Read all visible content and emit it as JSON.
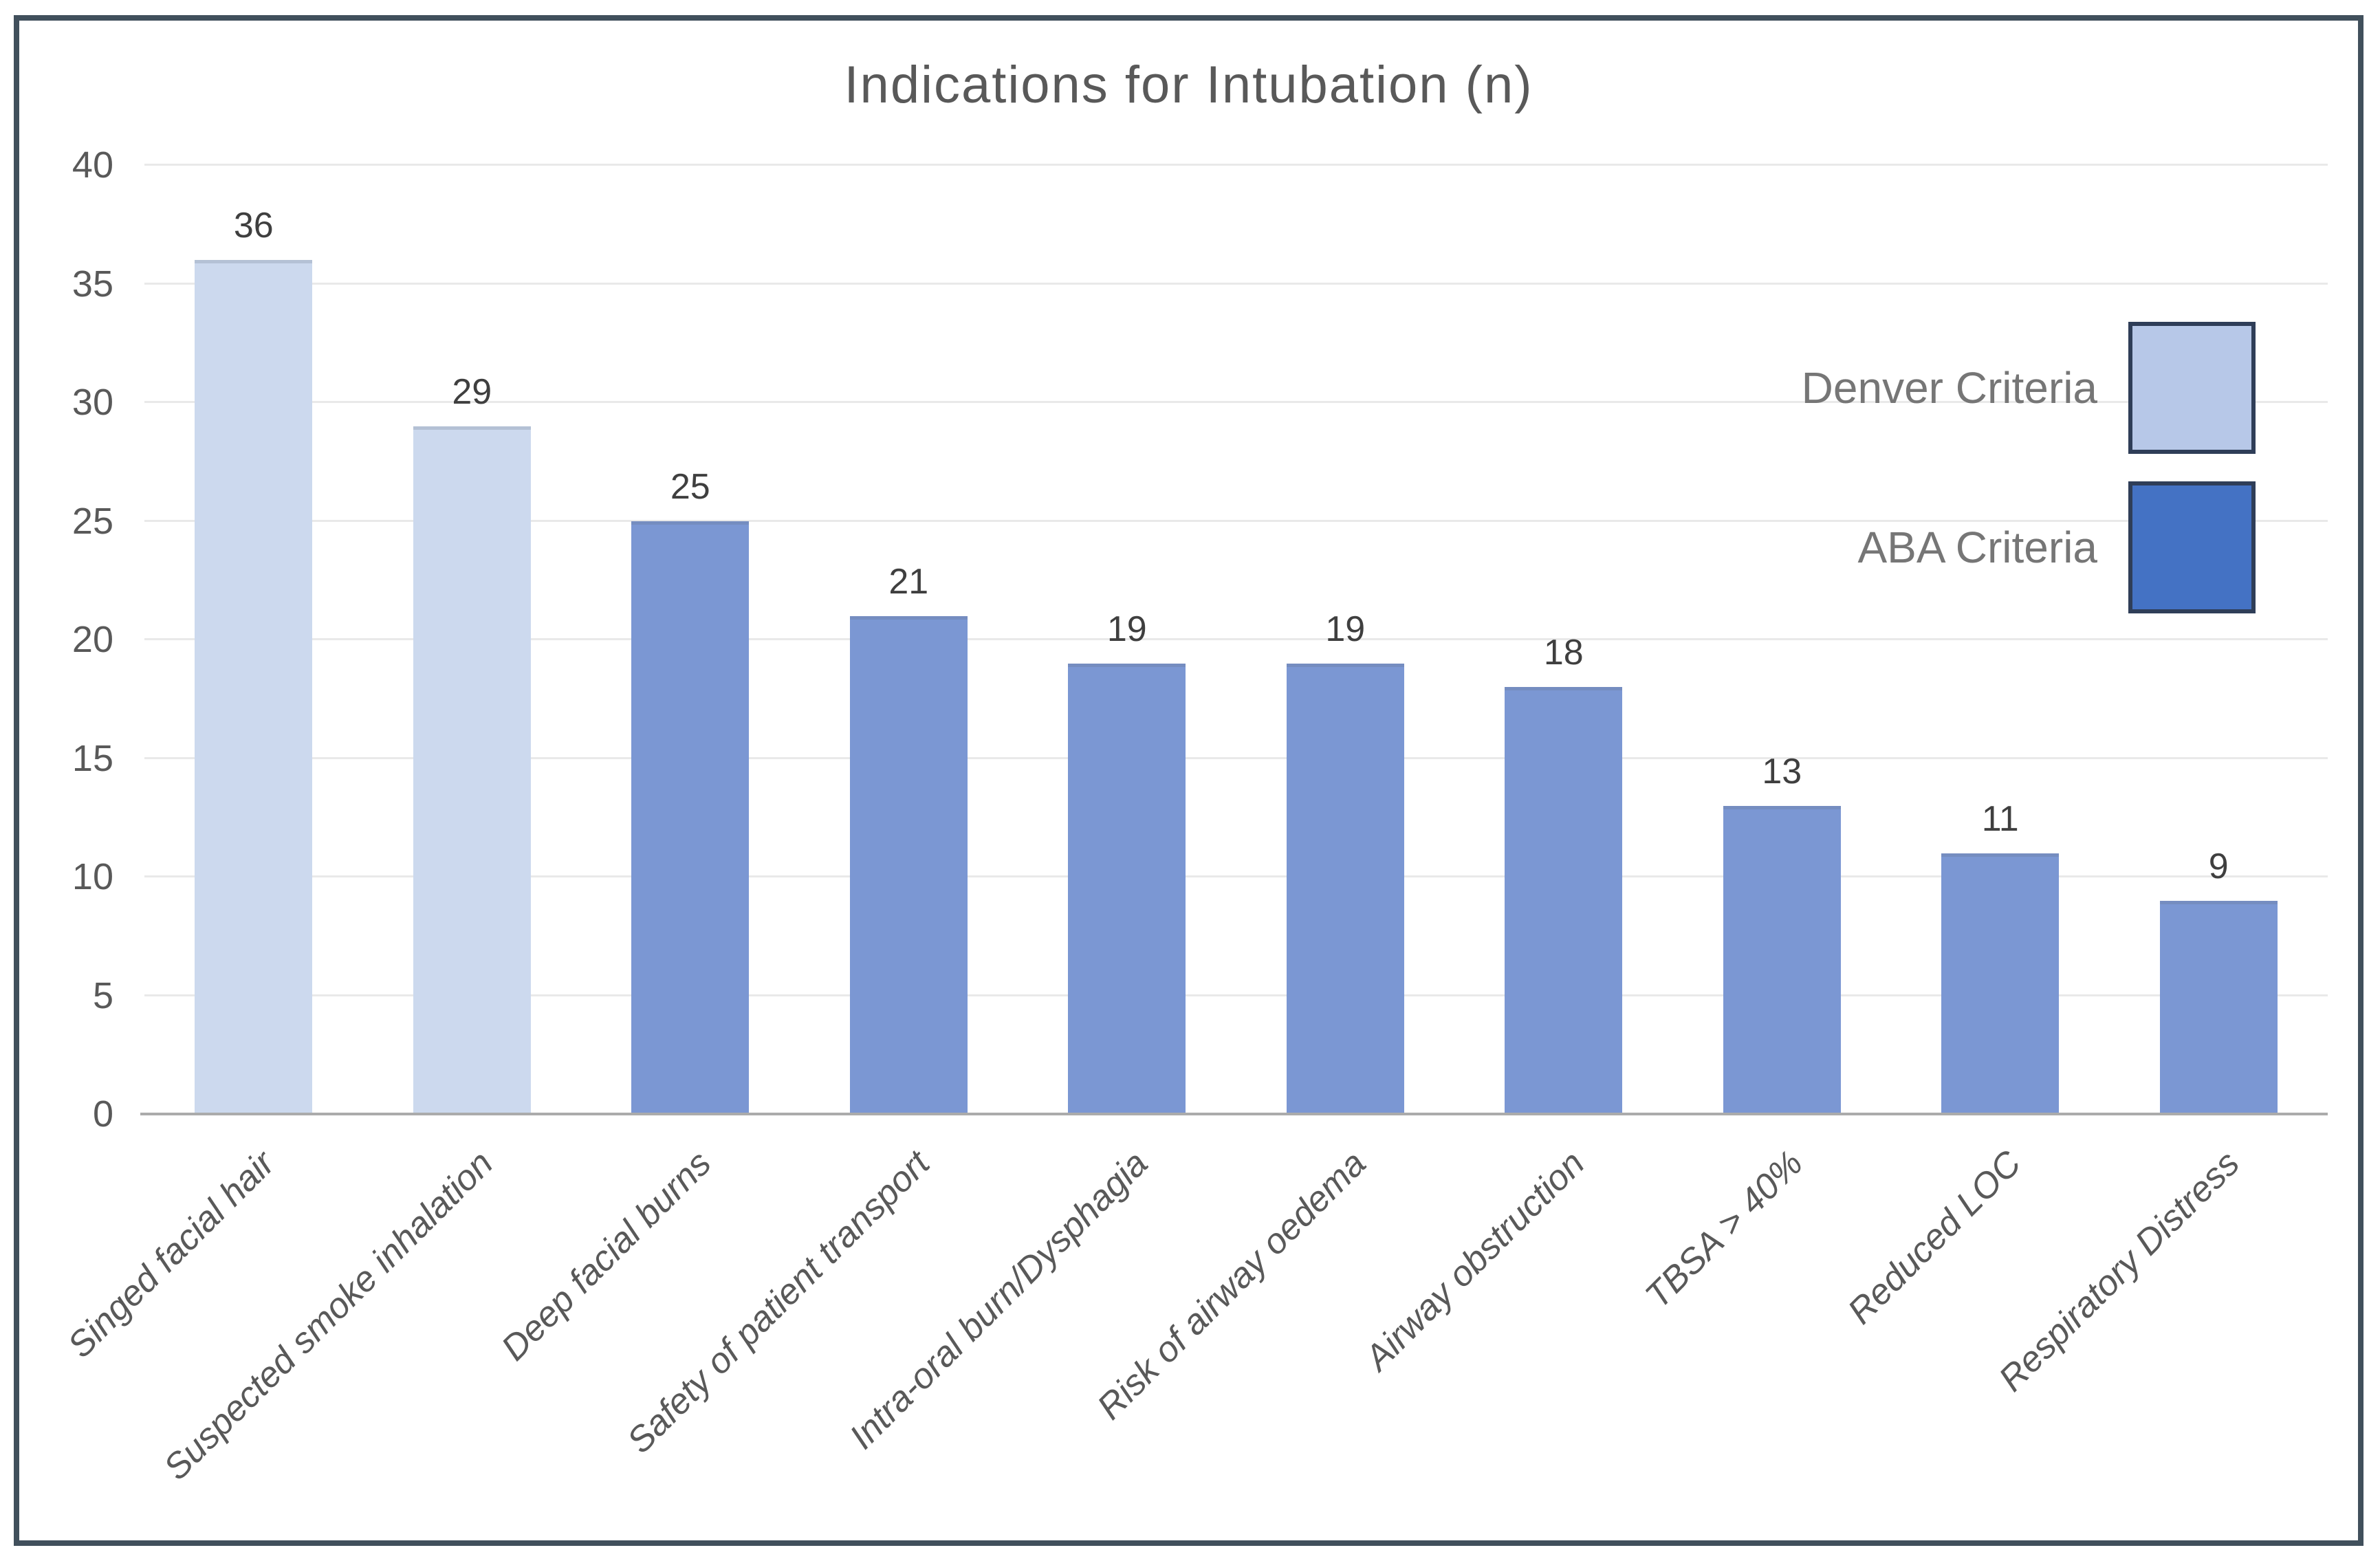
{
  "page": {
    "background_color": "#ffffff",
    "frame_border_color": "#41505c"
  },
  "chart_data": {
    "type": "bar",
    "title": "Indications for Intubation (n)",
    "categories": [
      "Singed facial hair",
      "Suspected smoke inhalation",
      "Deep facial burns",
      "Safety of patient transport",
      "Intra-oral burn/Dysphagia",
      "Risk of airway oedema",
      "Airway obstruction",
      "TBSA > 40%",
      "Reduced LOC",
      "Respiratory Distress"
    ],
    "values": [
      36,
      29,
      25,
      21,
      19,
      19,
      18,
      13,
      11,
      9
    ],
    "series_index_by_category": [
      0,
      0,
      1,
      1,
      1,
      1,
      1,
      1,
      1,
      1
    ],
    "series": [
      {
        "name": "Denver Criteria",
        "bar_color": "#ccd9ee",
        "swatch_color": "#b7c8e8"
      },
      {
        "name": "ABA Criteria",
        "bar_color": "#7b97d3",
        "swatch_color": "#4472c4"
      }
    ],
    "ylim": [
      0,
      40
    ],
    "yticks": [
      0,
      5,
      10,
      15,
      20,
      25,
      30,
      35,
      40
    ],
    "grid": true,
    "legend_position": "upper-right",
    "xlabel": "",
    "ylabel": "",
    "styles": {
      "title_color": "#595959",
      "axis_tick_color": "#595959",
      "value_label_color": "#3f3f3f",
      "legend_text_color": "#767676",
      "gridline_color": "#e9e9e9",
      "baseline_color": "#ababab",
      "swatch_border_color": "#2f3e58"
    }
  }
}
